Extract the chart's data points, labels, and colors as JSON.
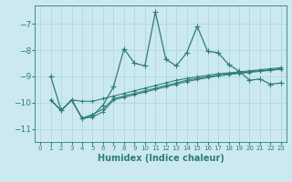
{
  "xlabel": "Humidex (Indice chaleur)",
  "bg_color": "#cce9f0",
  "grid_color": "#aad4dc",
  "line_color": "#2d7d78",
  "xlim": [
    -0.5,
    23.5
  ],
  "ylim": [
    -11.5,
    -6.3
  ],
  "yticks": [
    -11,
    -10,
    -9,
    -8,
    -7
  ],
  "xticks": [
    0,
    1,
    2,
    3,
    4,
    5,
    6,
    7,
    8,
    9,
    10,
    11,
    12,
    13,
    14,
    15,
    16,
    17,
    18,
    19,
    20,
    21,
    22,
    23
  ],
  "y1": [
    null,
    -9.0,
    -10.3,
    -9.9,
    -10.6,
    -10.5,
    -10.1,
    -9.4,
    -7.95,
    -8.5,
    -8.6,
    -6.55,
    -8.35,
    -8.6,
    -8.1,
    -7.1,
    -8.05,
    -8.1,
    -8.55,
    -8.8,
    -9.15,
    -9.1,
    -9.3,
    -9.25
  ],
  "y2": [
    null,
    -9.9,
    -10.3,
    -9.9,
    -9.95,
    -9.95,
    -9.85,
    -9.75,
    -9.65,
    -9.55,
    -9.45,
    -9.35,
    -9.25,
    -9.15,
    -9.08,
    -9.02,
    -8.96,
    -8.9,
    -8.87,
    -8.83,
    -8.79,
    -8.75,
    -8.71,
    -8.67
  ],
  "y3": [
    null,
    -9.9,
    -10.3,
    -9.9,
    -10.6,
    -10.45,
    -10.25,
    -9.85,
    -9.75,
    -9.65,
    -9.55,
    -9.45,
    -9.35,
    -9.25,
    -9.15,
    -9.08,
    -9.02,
    -8.96,
    -8.9,
    -8.87,
    -8.83,
    -8.79,
    -8.75,
    -8.71
  ],
  "y4": [
    null,
    -9.9,
    -10.3,
    -9.9,
    -10.6,
    -10.55,
    -10.35,
    -9.9,
    -9.8,
    -9.7,
    -9.6,
    -9.5,
    -9.4,
    -9.3,
    -9.2,
    -9.12,
    -9.05,
    -8.98,
    -8.93,
    -8.89,
    -8.85,
    -8.81,
    -8.77,
    -8.73
  ]
}
